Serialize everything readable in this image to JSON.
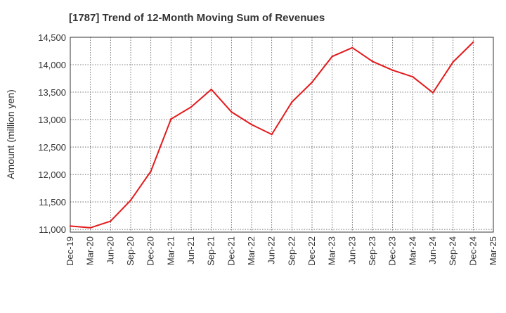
{
  "chart_data": {
    "type": "line",
    "title": "[1787]  Trend of 12-Month Moving Sum of Revenues",
    "xlabel": "",
    "ylabel": "Amount (million yen)",
    "categories": [
      "Dec-19",
      "Mar-20",
      "Jun-20",
      "Sep-20",
      "Dec-20",
      "Mar-21",
      "Jun-21",
      "Sep-21",
      "Dec-21",
      "Mar-22",
      "Jun-22",
      "Sep-22",
      "Dec-22",
      "Mar-23",
      "Jun-23",
      "Sep-23",
      "Dec-23",
      "Mar-24",
      "Jun-24",
      "Sep-24",
      "Dec-24",
      "Mar-25"
    ],
    "yticks": [
      "11,000",
      "11,500",
      "12,000",
      "12,500",
      "13,000",
      "13,500",
      "14,000",
      "14,500"
    ],
    "ylim": [
      10950,
      14500
    ],
    "grid": true,
    "series": [
      {
        "name": "",
        "color": "#e31a1c",
        "values": [
          11060,
          11030,
          11150,
          11530,
          12060,
          13010,
          13230,
          13550,
          13140,
          12910,
          12730,
          13320,
          13680,
          14150,
          14310,
          14060,
          13900,
          13780,
          13490,
          14050,
          14410,
          null
        ]
      }
    ]
  }
}
